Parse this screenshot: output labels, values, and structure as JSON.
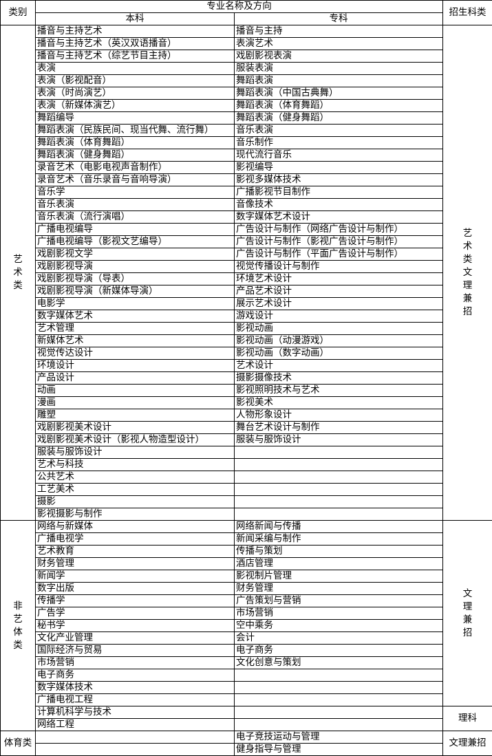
{
  "header": {
    "category": "类别",
    "major_group": "专业名称及方向",
    "undergrad": "本科",
    "junior": "专科",
    "enroll": "招生科类"
  },
  "sections": [
    {
      "category": "艺术类",
      "enroll": [
        {
          "label": "艺术类文理兼招",
          "rows": 40
        }
      ],
      "undergrad": [
        "播音与主持艺术",
        "播音与主持艺术（英汉双语播音）",
        "播音与主持艺术（综艺节目主持）",
        "表演",
        "表演（影视配音）",
        "表演（时尚演艺）",
        "表演（新媒体演艺）",
        "舞蹈编导",
        "舞蹈表演（民族民间、现当代舞、流行舞）",
        "舞蹈表演（体育舞蹈）",
        "舞蹈表演（健身舞蹈）",
        "录音艺术（电影电视声音制作）",
        "录音艺术（音乐录音与音响导演）",
        "音乐学",
        "音乐表演",
        "音乐表演（流行演唱）",
        "广播电视编导",
        "广播电视编导（影视文艺编导）",
        "戏剧影视文学",
        "戏剧影视导演",
        "戏剧影视导演（导表）",
        "戏剧影视导演（新媒体导演）",
        "电影学",
        "数字媒体艺术",
        "艺术管理",
        "新媒体艺术",
        "视觉传达设计",
        "环境设计",
        "产品设计",
        "动画",
        "漫画",
        "雕塑",
        "戏剧影视美术设计",
        "戏剧影视美术设计（影视人物造型设计）",
        "服装与服饰设计",
        "艺术与科技",
        "公共艺术",
        "工艺美术",
        "摄影",
        "影视摄影与制作"
      ],
      "junior": [
        "播音与主持",
        "表演艺术",
        "戏剧影视表演",
        "服装表演",
        "舞蹈表演",
        "舞蹈表演（中国古典舞）",
        "舞蹈表演（体育舞蹈）",
        "舞蹈表演（健身舞蹈）",
        "音乐表演",
        "音乐制作",
        "现代流行音乐",
        "影视编导",
        "影视多媒体技术",
        "广播影视节目制作",
        "音像技术",
        "数字媒体艺术设计",
        "广告设计与制作（网络广告设计与制作）",
        "广告设计与制作（影视广告设计与制作）",
        "广告设计与制作（平面广告设计与制作）",
        "视觉传播设计与制作",
        "环境艺术设计",
        "产品艺术设计",
        "展示艺术设计",
        "游戏设计",
        "影视动画",
        "影视动画（动漫游戏）",
        "影视动画（数字动画）",
        "艺术设计",
        "摄影摄像技术",
        "影视照明技术与艺术",
        "影视美术",
        "人物形象设计",
        "舞台艺术设计与制作",
        "服装与服饰设计",
        "",
        "",
        "",
        "",
        "",
        ""
      ]
    },
    {
      "category": "非艺体类",
      "enroll": [
        {
          "label": "文理兼招",
          "rows": 15
        },
        {
          "label": "理科",
          "rows": 2
        }
      ],
      "undergrad": [
        "网络与新媒体",
        "广播电视学",
        "艺术教育",
        "财务管理",
        "新闻学",
        "数字出版",
        "传播学",
        "广告学",
        "秘书学",
        "文化产业管理",
        "国际经济与贸易",
        "市场营销",
        "电子商务",
        "数字媒体技术",
        "广播电视工程",
        "计算机科学与技术",
        "网络工程"
      ],
      "junior": [
        "网络新闻与传播",
        "新闻采编与制作",
        "传播与策划",
        "酒店管理",
        "影视制片管理",
        "财务管理",
        "广告策划与营销",
        "市场营销",
        "空中乘务",
        "会计",
        "电子商务",
        "文化创意与策划",
        "",
        "",
        "",
        "",
        ""
      ]
    },
    {
      "category": "体育类",
      "enroll": [
        {
          "label": "文理兼招",
          "rows": 2
        }
      ],
      "undergrad": [
        "",
        ""
      ],
      "junior": [
        "电子竞技运动与管理",
        "健身指导与管理"
      ]
    }
  ]
}
